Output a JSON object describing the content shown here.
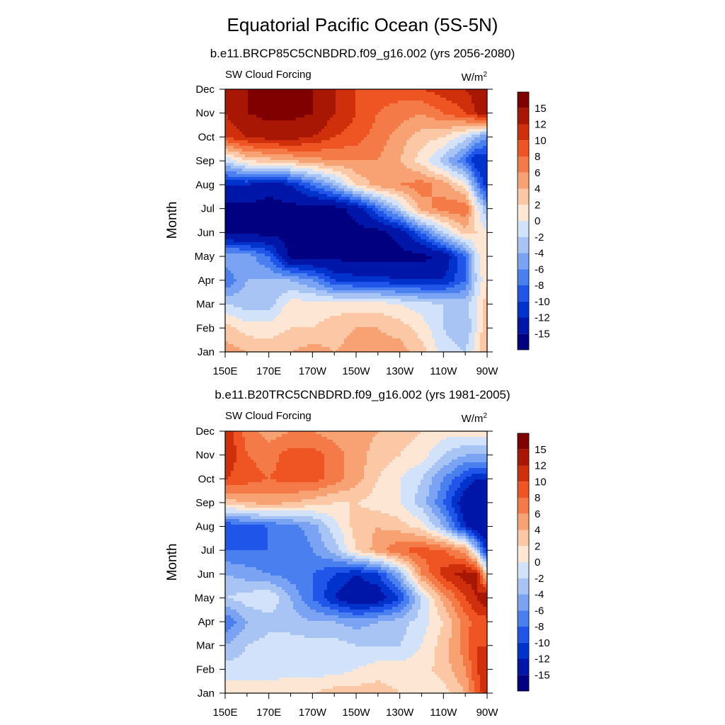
{
  "title": "Equatorial Pacific Ocean (5S-5N)",
  "chart_data": [
    {
      "type": "heatmap",
      "subtitle": "b.e11.BRCP85C5CNBDRD.f09_g16.002 (yrs 2056-2080)",
      "left_label": "SW Cloud Forcing",
      "units_base": "W/m",
      "units_sup": "2",
      "ylabel": "Month",
      "x_labels": [
        "150E",
        "170E",
        "170W",
        "150W",
        "130W",
        "110W",
        "90W"
      ],
      "x_values": [
        150,
        170,
        190,
        210,
        230,
        250,
        270
      ],
      "y_labels": [
        "Jan",
        "Feb",
        "Mar",
        "Apr",
        "May",
        "Jun",
        "Jul",
        "Aug",
        "Sep",
        "Oct",
        "Nov",
        "Dec"
      ],
      "xlim": [
        150,
        270
      ],
      "ylim": [
        1,
        12
      ],
      "colorbar_labels": [
        "15",
        "12",
        "10",
        "8",
        "6",
        "4",
        "2",
        "0",
        "-2",
        "-4",
        "-6",
        "-8",
        "-10",
        "-12",
        "-15"
      ],
      "field_note_lon": [
        150,
        160,
        170,
        180,
        190,
        200,
        210,
        220,
        230,
        240,
        250,
        260,
        265,
        270
      ],
      "z": [
        [
          5,
          4,
          3,
          4,
          5,
          4,
          5,
          5,
          5,
          3,
          -1,
          -2,
          1,
          4
        ],
        [
          3,
          1,
          1,
          2,
          2,
          3,
          4,
          4,
          3,
          1,
          -2,
          -4,
          0,
          4
        ],
        [
          -2,
          -3,
          -3,
          1,
          1,
          1,
          1,
          1,
          0,
          -1,
          -2,
          -3,
          0,
          3
        ],
        [
          -8,
          -4,
          -4,
          -4,
          -6,
          -10,
          -11,
          -11,
          -12,
          -12,
          -12,
          -8,
          -2,
          2
        ],
        [
          -4,
          -5,
          -8,
          -16,
          -16,
          -16,
          -16,
          -16,
          -16,
          -16,
          -14,
          -8,
          -1,
          2
        ],
        [
          -16,
          -16,
          -16,
          -16,
          -16,
          -16,
          -16,
          -16,
          -14,
          -8,
          -2,
          3,
          2,
          0
        ],
        [
          -16,
          -16,
          -16,
          -16,
          -16,
          -16,
          -14,
          -8,
          -2,
          5,
          7,
          8,
          1,
          -4
        ],
        [
          -12,
          -12,
          -14,
          -12,
          -8,
          -4,
          2,
          5,
          6,
          7,
          5,
          1,
          -6,
          -12
        ],
        [
          -2,
          2,
          3,
          4,
          5,
          6,
          6,
          6,
          4,
          1,
          -3,
          -8,
          -12,
          -12
        ],
        [
          10,
          12,
          13,
          13,
          12,
          10,
          9,
          7,
          5,
          3,
          2,
          -1,
          -4,
          -6
        ],
        [
          12,
          15,
          16,
          16,
          15,
          12,
          10,
          8,
          7,
          6,
          8,
          10,
          12,
          14
        ],
        [
          14,
          15,
          16,
          16,
          15,
          12,
          10,
          9,
          9,
          10,
          11,
          12,
          13,
          14
        ]
      ]
    },
    {
      "type": "heatmap",
      "subtitle": "b.e11.B20TRC5CNBDRD.f09_g16.002 (yrs 1981-2005)",
      "left_label": "SW Cloud Forcing",
      "units_base": "W/m",
      "units_sup": "2",
      "ylabel": "Month",
      "x_labels": [
        "150E",
        "170E",
        "170W",
        "150W",
        "130W",
        "110W",
        "90W"
      ],
      "x_values": [
        150,
        170,
        190,
        210,
        230,
        250,
        270
      ],
      "y_labels": [
        "Jan",
        "Feb",
        "Mar",
        "Apr",
        "May",
        "Jun",
        "Jul",
        "Aug",
        "Sep",
        "Oct",
        "Nov",
        "Dec"
      ],
      "xlim": [
        150,
        270
      ],
      "ylim": [
        1,
        12
      ],
      "colorbar_labels": [
        "15",
        "12",
        "10",
        "8",
        "6",
        "4",
        "2",
        "0",
        "-2",
        "-4",
        "-6",
        "-8",
        "-10",
        "-12",
        "-15"
      ],
      "field_note_lon": [
        150,
        160,
        170,
        180,
        190,
        200,
        210,
        220,
        230,
        240,
        250,
        260,
        265,
        270
      ],
      "z": [
        [
          1,
          1,
          1,
          2,
          2,
          3,
          3,
          3,
          2,
          1,
          1,
          4,
          8,
          12
        ],
        [
          -1,
          -1,
          -1,
          -1,
          -1,
          -1,
          0,
          1,
          1,
          1,
          3,
          6,
          10,
          12
        ],
        [
          -4,
          -2,
          -1,
          -1,
          -1,
          -1,
          -2,
          -2,
          -2,
          0,
          3,
          7,
          10,
          10
        ],
        [
          -8,
          -4,
          -3,
          -3,
          -4,
          -4,
          -5,
          -4,
          -3,
          -1,
          2,
          7,
          9,
          9
        ],
        [
          -2,
          -1,
          0,
          -4,
          -8,
          -12,
          -15,
          -14,
          -10,
          -2,
          5,
          10,
          12,
          14
        ],
        [
          -4,
          -5,
          -6,
          -7,
          -8,
          -10,
          -12,
          -10,
          -4,
          6,
          11,
          13,
          13,
          2
        ],
        [
          -8,
          -8,
          -8,
          -8,
          -6,
          -3,
          2,
          5,
          8,
          9,
          8,
          5,
          -2,
          -12
        ],
        [
          -10,
          -9,
          -8,
          -7,
          -5,
          -1,
          3,
          4,
          3,
          1,
          -4,
          -12,
          -15,
          -15
        ],
        [
          3,
          4,
          5,
          4,
          3,
          2,
          2,
          1,
          0,
          -3,
          -8,
          -14,
          -15,
          -15
        ],
        [
          10,
          9,
          8,
          9,
          9,
          7,
          5,
          2,
          0,
          -2,
          -6,
          -10,
          -12,
          -12
        ],
        [
          12,
          8,
          7,
          9,
          9,
          7,
          5,
          3,
          2,
          1,
          -2,
          -4,
          -4,
          -4
        ],
        [
          12,
          7,
          5,
          6,
          6,
          5,
          5,
          4,
          3,
          2,
          1,
          1,
          1,
          1
        ]
      ]
    }
  ],
  "colors": {
    "levels": [
      -15,
      -12,
      -10,
      -8,
      -6,
      -4,
      -2,
      0,
      2,
      4,
      6,
      8,
      10,
      12,
      15
    ],
    "palette": [
      "#000080",
      "#0016a8",
      "#0033cc",
      "#1f55e8",
      "#4a7ff0",
      "#7aa3f3",
      "#a8c4f5",
      "#d2e2fa",
      "#fde6d3",
      "#fbc7a5",
      "#f8a274",
      "#f47a48",
      "#ee5522",
      "#cf300b",
      "#a81604",
      "#800000"
    ]
  }
}
